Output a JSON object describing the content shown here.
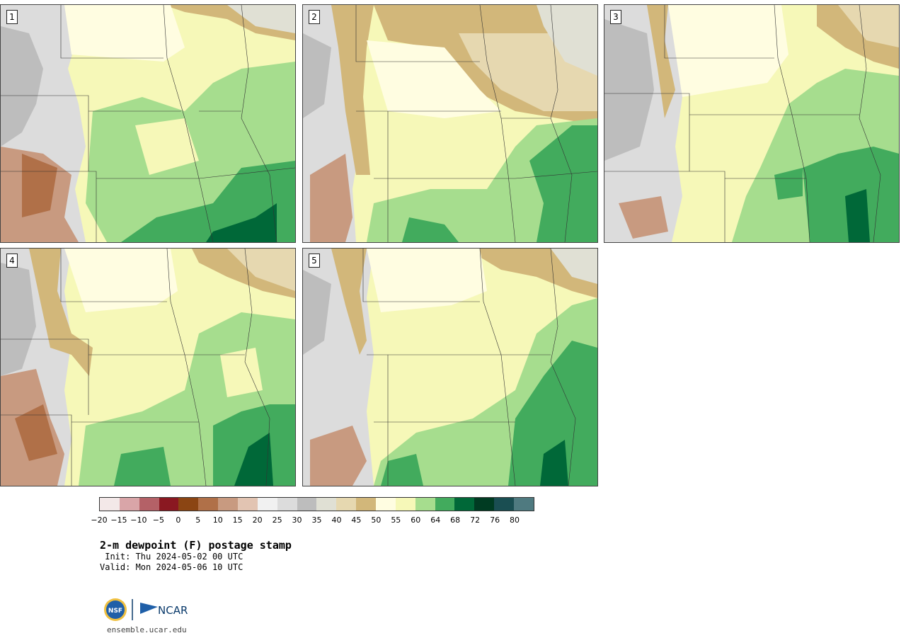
{
  "panels": [
    {
      "label": "1"
    },
    {
      "label": "2"
    },
    {
      "label": "3"
    },
    {
      "label": "4"
    },
    {
      "label": "5"
    }
  ],
  "colorbar": {
    "colors": [
      "#f3e8e8",
      "#d9a5a8",
      "#b46167",
      "#8a1821",
      "#8b4513",
      "#b07048",
      "#c89a80",
      "#e2c4b2",
      "#f1f1f1",
      "#dcdcdc",
      "#bdbdbd",
      "#e0e0d4",
      "#e6d8b0",
      "#d2b77a",
      "#fffde1",
      "#f6f8b8",
      "#a6dd8e",
      "#42ab5d",
      "#006838",
      "#003b22",
      "#1a4e52",
      "#4f7a80"
    ],
    "tick_labels": [
      "−20",
      "−15",
      "−10",
      "−5",
      "0",
      "5",
      "10",
      "15",
      "20",
      "25",
      "30",
      "35",
      "40",
      "45",
      "50",
      "55",
      "60",
      "64",
      "68",
      "72",
      "76",
      "80"
    ]
  },
  "title": "2-m dewpoint (F) postage stamp",
  "init_line": " Init: Thu 2024-05-02 00 UTC",
  "valid_line": "Valid: Mon 2024-05-06 10 UTC",
  "logos": {
    "nsf": "NSF",
    "ncar": "NCAR"
  },
  "website": "ensemble.ucar.edu"
}
